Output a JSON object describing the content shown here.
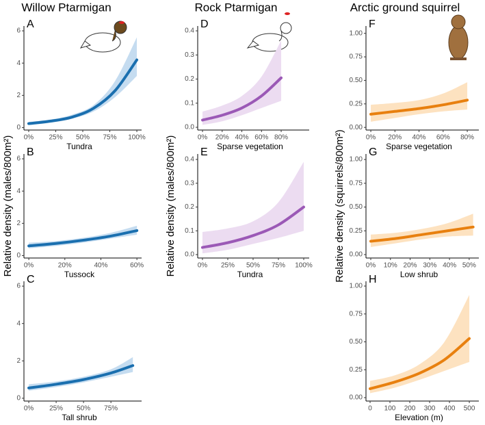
{
  "chart_data": [
    {
      "type": "line",
      "title": "Willow Ptarmigan",
      "label": "A",
      "xlabel": "Tundra",
      "color": "#1a6faf",
      "band_color": "#c5dcf0",
      "x": [
        0,
        20,
        40,
        60,
        80,
        100
      ],
      "values": [
        0.25,
        0.4,
        0.65,
        1.2,
        2.3,
        4.2
      ],
      "lower": [
        0.15,
        0.3,
        0.55,
        1.0,
        1.9,
        3.2
      ],
      "upper": [
        0.35,
        0.5,
        0.8,
        1.4,
        2.9,
        5.6
      ],
      "xlim": [
        -4.4,
        104.4
      ],
      "xticks": [
        {
          "value": 0,
          "label": "0%"
        },
        {
          "value": 25,
          "label": "25%"
        },
        {
          "value": 50,
          "label": "50%"
        },
        {
          "value": 75,
          "label": "75%"
        },
        {
          "value": 100,
          "label": "100%"
        }
      ],
      "ylim": [
        -0.15,
        6.3
      ],
      "yticks": [
        0,
        2,
        4,
        6
      ]
    },
    {
      "type": "line",
      "label": "B",
      "ylabel": "Relative density (males/800m²)",
      "xlabel": "Tussock",
      "color": "#1a6faf",
      "band_color": "#c5dcf0",
      "x": [
        0,
        15,
        30,
        45,
        60
      ],
      "values": [
        0.6,
        0.75,
        0.95,
        1.2,
        1.55
      ],
      "lower": [
        0.45,
        0.6,
        0.8,
        1.05,
        1.3
      ],
      "upper": [
        0.8,
        0.9,
        1.1,
        1.4,
        1.85
      ],
      "xlim": [
        -2.7,
        62.6
      ],
      "xticks": [
        {
          "value": 0,
          "label": "0%"
        },
        {
          "value": 20,
          "label": "20%"
        },
        {
          "value": 40,
          "label": "40%"
        },
        {
          "value": 60,
          "label": "60%"
        }
      ],
      "ylim": [
        -0.15,
        6.3
      ],
      "yticks": [
        0,
        2,
        4,
        6
      ]
    },
    {
      "type": "line",
      "label": "C",
      "xlabel": "Tall shrub",
      "color": "#1a6faf",
      "band_color": "#c5dcf0",
      "x": [
        0,
        25,
        50,
        75,
        95
      ],
      "values": [
        0.55,
        0.75,
        1.0,
        1.35,
        1.75
      ],
      "lower": [
        0.4,
        0.6,
        0.85,
        1.15,
        1.4
      ],
      "upper": [
        0.75,
        0.9,
        1.15,
        1.55,
        2.2
      ],
      "xlim": [
        -4.4,
        103
      ],
      "xticks": [
        {
          "value": 0,
          "label": "0%"
        },
        {
          "value": 25,
          "label": "25%"
        },
        {
          "value": 50,
          "label": "50%"
        },
        {
          "value": 75,
          "label": "75%"
        }
      ],
      "ylim": [
        -0.15,
        6.26
      ],
      "yticks": [
        0,
        2,
        4,
        6
      ]
    },
    {
      "type": "line",
      "title": "Rock Ptarmigan",
      "label": "D",
      "xlabel": "Sparse vegetation",
      "color": "#9b59b6",
      "band_color": "#ecdcf1",
      "x": [
        0,
        20,
        40,
        60,
        80
      ],
      "values": [
        0.03,
        0.05,
        0.08,
        0.13,
        0.205
      ],
      "lower": [
        0.01,
        0.025,
        0.05,
        0.08,
        0.11
      ],
      "upper": [
        0.065,
        0.09,
        0.13,
        0.21,
        0.36
      ],
      "xlim": [
        -4.9,
        108.5
      ],
      "xticks": [
        {
          "value": 0,
          "label": "0%"
        },
        {
          "value": 20,
          "label": "20%"
        },
        {
          "value": 40,
          "label": "40%"
        },
        {
          "value": 60,
          "label": "60%"
        },
        {
          "value": 80,
          "label": "80%"
        }
      ],
      "ylim": [
        -0.0113,
        0.42
      ],
      "yticks": [
        {
          "value": 0,
          "label": "0.0"
        },
        0.1,
        0.2,
        0.3,
        0.4
      ]
    },
    {
      "type": "line",
      "label": "E",
      "ylabel": "Relative density (males/800m²)",
      "xlabel": "Tundra",
      "color": "#9b59b6",
      "band_color": "#ecdcf1",
      "x": [
        0,
        25,
        50,
        75,
        100
      ],
      "values": [
        0.03,
        0.05,
        0.08,
        0.125,
        0.2
      ],
      "lower": [
        0.005,
        0.02,
        0.045,
        0.07,
        0.1
      ],
      "upper": [
        0.095,
        0.11,
        0.14,
        0.22,
        0.39
      ],
      "xlim": [
        -4.7,
        105.4
      ],
      "xticks": [
        {
          "value": 0,
          "label": "0%"
        },
        {
          "value": 25,
          "label": "25%"
        },
        {
          "value": 50,
          "label": "50%"
        },
        {
          "value": 75,
          "label": "75%"
        },
        {
          "value": 100,
          "label": "100%"
        }
      ],
      "ylim": [
        -0.0144,
        0.423
      ],
      "yticks": [
        {
          "value": 0,
          "label": "0.0"
        },
        0.1,
        0.2,
        0.3,
        0.4
      ]
    },
    {
      "type": "line",
      "title": "Arctic ground squirrel",
      "label": "F",
      "xlabel": "Sparse vegetation",
      "color": "#e8800f",
      "band_color": "#fde2c0",
      "x": [
        0,
        20,
        40,
        60,
        80
      ],
      "values": [
        0.14,
        0.17,
        0.2,
        0.24,
        0.29
      ],
      "lower": [
        0.06,
        0.1,
        0.14,
        0.17,
        0.19
      ],
      "upper": [
        0.24,
        0.26,
        0.29,
        0.36,
        0.48
      ],
      "xlim": [
        -4,
        89.6
      ],
      "xticks": [
        {
          "value": 0,
          "label": "0%"
        },
        {
          "value": 20,
          "label": "20%"
        },
        {
          "value": 40,
          "label": "40%"
        },
        {
          "value": 60,
          "label": "60%"
        },
        {
          "value": 80,
          "label": "80%"
        }
      ],
      "ylim": [
        -0.028,
        1.078
      ],
      "yticks": [
        {
          "value": 0,
          "label": "0.00"
        },
        0.25,
        {
          "value": 0.5,
          "label": "0.50"
        },
        0.75,
        {
          "value": 1,
          "label": "1.00"
        }
      ]
    },
    {
      "type": "line",
      "label": "G",
      "ylabel": "Relative density (squirrels/800m²)",
      "xlabel": "Low shrub",
      "color": "#e8800f",
      "band_color": "#fde2c0",
      "x": [
        0,
        13,
        26,
        39,
        52
      ],
      "values": [
        0.14,
        0.17,
        0.21,
        0.25,
        0.29
      ],
      "lower": [
        0.08,
        0.12,
        0.16,
        0.19,
        0.2
      ],
      "upper": [
        0.21,
        0.23,
        0.27,
        0.33,
        0.43
      ],
      "xlim": [
        -2.43,
        54.9
      ],
      "xticks": [
        {
          "value": 0,
          "label": "0%"
        },
        {
          "value": 10,
          "label": "10%"
        },
        {
          "value": 20,
          "label": "20%"
        },
        {
          "value": 30,
          "label": "30%"
        },
        {
          "value": 40,
          "label": "40%"
        },
        {
          "value": 50,
          "label": "50%"
        }
      ],
      "ylim": [
        -0.036,
        1.058
      ],
      "yticks": [
        {
          "value": 0,
          "label": "0.00"
        },
        0.25,
        {
          "value": 0.5,
          "label": "0.50"
        },
        0.75,
        {
          "value": 1,
          "label": "1.00"
        }
      ]
    },
    {
      "type": "line",
      "label": "H",
      "xlabel": "Elevation (m)",
      "color": "#e8800f",
      "band_color": "#fde2c0",
      "x": [
        0,
        125,
        250,
        375,
        500
      ],
      "values": [
        0.08,
        0.14,
        0.22,
        0.34,
        0.53
      ],
      "lower": [
        0.04,
        0.09,
        0.16,
        0.24,
        0.32
      ],
      "upper": [
        0.15,
        0.2,
        0.3,
        0.5,
        0.92
      ],
      "xlim": [
        -20.7,
        548
      ],
      "xticks": [
        0,
        100,
        200,
        300,
        400,
        500
      ],
      "ylim": [
        -0.0307,
        1.043
      ],
      "yticks": [
        {
          "value": 0,
          "label": "0.00"
        },
        0.25,
        {
          "value": 0.5,
          "label": "0.50"
        },
        0.75,
        {
          "value": 1,
          "label": "1.00"
        }
      ]
    }
  ]
}
